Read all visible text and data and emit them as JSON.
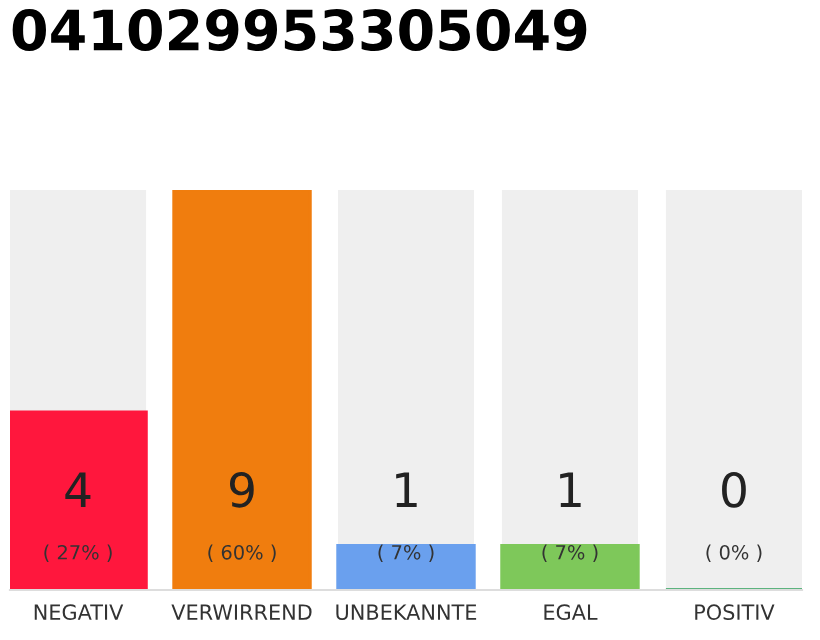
{
  "chart_data": {
    "type": "bar",
    "title": "041029953305049",
    "categories": [
      "NEGATIV",
      "VERWIRREND",
      "UNBEKANNTE",
      "EGAL",
      "POSITIV"
    ],
    "values": [
      4,
      9,
      1,
      1,
      0
    ],
    "colors": [
      "#ff173d",
      "#f07d0e",
      "#6aa0ee",
      "#7ec85a",
      "#2ca05a"
    ],
    "data_labels": true,
    "annotations": [
      "( 27% )",
      "( 60% )",
      "( 7% )",
      "( 7% )",
      "( 0% )"
    ],
    "tick_labels": "x",
    "grid": false,
    "legend": false
  }
}
